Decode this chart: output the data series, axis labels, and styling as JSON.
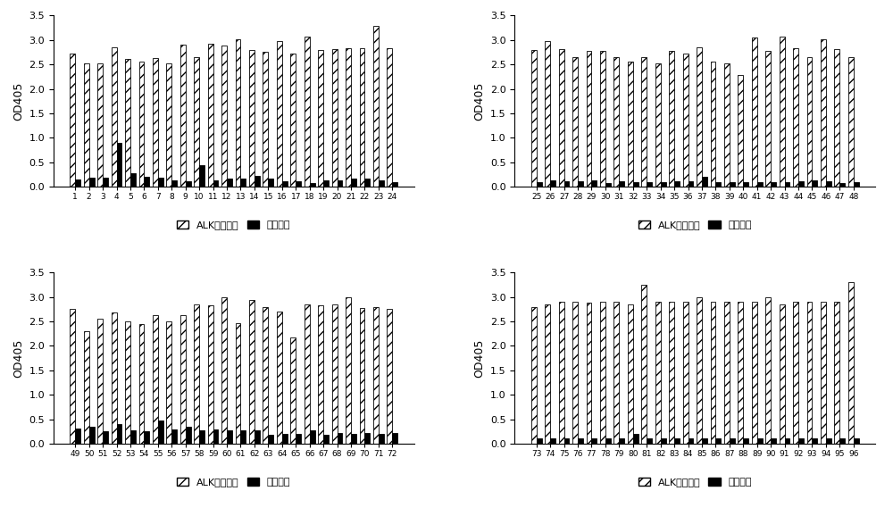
{
  "panels": [
    {
      "labels": [
        "1",
        "2",
        "3",
        "4",
        "5",
        "6",
        "7",
        "8",
        "9",
        "10",
        "11",
        "12",
        "13",
        "14",
        "15",
        "16",
        "17",
        "18",
        "19",
        "20",
        "21",
        "22",
        "23",
        "24"
      ],
      "alk": [
        2.72,
        2.52,
        2.53,
        2.85,
        2.62,
        2.56,
        2.63,
        2.52,
        2.9,
        2.64,
        2.93,
        2.88,
        3.02,
        2.8,
        2.76,
        2.97,
        2.73,
        3.06,
        2.8,
        2.82,
        2.83,
        2.83,
        3.28,
        2.83
      ],
      "neg": [
        0.15,
        0.18,
        0.18,
        0.9,
        0.28,
        0.21,
        0.18,
        0.14,
        0.12,
        0.44,
        0.13,
        0.17,
        0.17,
        0.22,
        0.17,
        0.12,
        0.12,
        0.08,
        0.13,
        0.13,
        0.16,
        0.16,
        0.14,
        0.1
      ]
    },
    {
      "labels": [
        "25",
        "26",
        "27",
        "28",
        "29",
        "30",
        "31",
        "32",
        "33",
        "34",
        "35",
        "36",
        "37",
        "38",
        "39",
        "40",
        "41",
        "42",
        "43",
        "44",
        "45",
        "46",
        "47",
        "48"
      ],
      "alk": [
        2.8,
        2.97,
        2.82,
        2.64,
        2.78,
        2.78,
        2.65,
        2.56,
        2.65,
        2.52,
        2.77,
        2.72,
        2.85,
        2.55,
        2.52,
        2.28,
        3.05,
        2.78,
        3.06,
        2.83,
        2.65,
        3.01,
        2.82,
        2.65
      ],
      "neg": [
        0.1,
        0.14,
        0.12,
        0.12,
        0.14,
        0.08,
        0.12,
        0.1,
        0.1,
        0.1,
        0.12,
        0.12,
        0.2,
        0.1,
        0.09,
        0.1,
        0.1,
        0.1,
        0.09,
        0.11,
        0.14,
        0.12,
        0.08,
        0.09
      ]
    },
    {
      "labels": [
        "49",
        "50",
        "51",
        "52",
        "53",
        "54",
        "55",
        "56",
        "57",
        "58",
        "59",
        "60",
        "61",
        "62",
        "63",
        "64",
        "65",
        "66",
        "67",
        "68",
        "69",
        "70",
        "71",
        "72"
      ],
      "alk": [
        2.75,
        2.3,
        2.55,
        2.68,
        2.5,
        2.45,
        2.62,
        2.5,
        2.62,
        2.85,
        2.83,
        3.0,
        2.47,
        2.93,
        2.8,
        2.7,
        2.18,
        2.85,
        2.82,
        2.85,
        2.99,
        2.78,
        2.8,
        2.76
      ],
      "neg": [
        0.31,
        0.35,
        0.25,
        0.4,
        0.27,
        0.25,
        0.48,
        0.29,
        0.34,
        0.27,
        0.29,
        0.27,
        0.28,
        0.27,
        0.18,
        0.2,
        0.21,
        0.28,
        0.19,
        0.22,
        0.21,
        0.22,
        0.21,
        0.22
      ]
    },
    {
      "labels": [
        "73",
        "74",
        "75",
        "76",
        "77",
        "78",
        "79",
        "80",
        "81",
        "82",
        "83",
        "84",
        "85",
        "86",
        "87",
        "88",
        "89",
        "90",
        "91",
        "92",
        "93",
        "94",
        "95",
        "96"
      ],
      "alk": [
        2.8,
        2.85,
        2.9,
        2.9,
        2.88,
        2.9,
        2.9,
        2.85,
        3.25,
        2.9,
        2.9,
        2.9,
        3.0,
        2.9,
        2.9,
        2.9,
        2.9,
        3.0,
        2.85,
        2.9,
        2.9,
        2.9,
        2.9,
        3.3
      ],
      "neg": [
        0.12,
        0.12,
        0.12,
        0.12,
        0.12,
        0.12,
        0.12,
        0.2,
        0.12,
        0.12,
        0.12,
        0.12,
        0.12,
        0.12,
        0.12,
        0.12,
        0.12,
        0.12,
        0.12,
        0.12,
        0.12,
        0.12,
        0.12,
        0.12
      ]
    }
  ],
  "ylabel": "OD405",
  "ylim": [
    0.0,
    3.5
  ],
  "yticks": [
    0.0,
    0.5,
    1.0,
    1.5,
    2.0,
    2.5,
    3.0,
    3.5
  ],
  "legend_alk": "ALK纳米抗体",
  "legend_neg": "阴性对照",
  "hatch_alk": "///",
  "color_alk": "white",
  "color_neg": "black",
  "bar_width": 0.38,
  "background_color": "#ffffff"
}
